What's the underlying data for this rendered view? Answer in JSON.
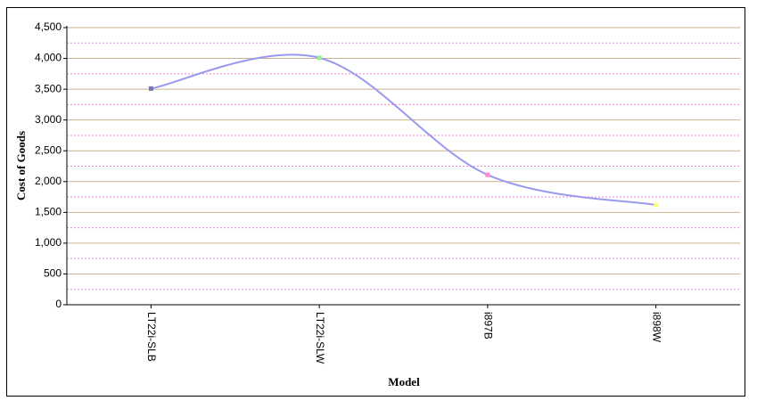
{
  "chart_data": {
    "type": "line",
    "x_label": "Model",
    "y_label": "Cost of Goods",
    "categories": [
      "LT22i-SLB",
      "LT22i-SLW",
      "i897B",
      "i898W"
    ],
    "series": [
      {
        "color": "#9999ee",
        "values": [
          3510,
          4010,
          2110,
          1620
        ],
        "marker_colors": [
          "#7777bb",
          "#99ee99",
          "#ff88cc",
          "#ffff66"
        ]
      }
    ],
    "ylim": [
      0,
      4500
    ],
    "yticks": [
      0,
      {
        "value": 500,
        "label": "500"
      },
      {
        "value": 1000,
        "label": "1,000"
      },
      {
        "value": 1500,
        "label": "1,500"
      },
      {
        "value": 2000,
        "label": "2,000"
      },
      {
        "value": 2500,
        "label": "2,500"
      },
      {
        "value": 3000,
        "label": "3,000"
      },
      {
        "value": 3500,
        "label": "3,500"
      },
      {
        "value": 4000,
        "label": "4,000"
      },
      {
        "value": 4500,
        "label": "4,500"
      }
    ],
    "minor_yticks": [
      250,
      750,
      1250,
      1750,
      2250,
      2750,
      3250,
      3750,
      4250
    ],
    "grid": true,
    "grid_color": "#c8b48c",
    "minor_grid_color": "#ee88dd"
  }
}
